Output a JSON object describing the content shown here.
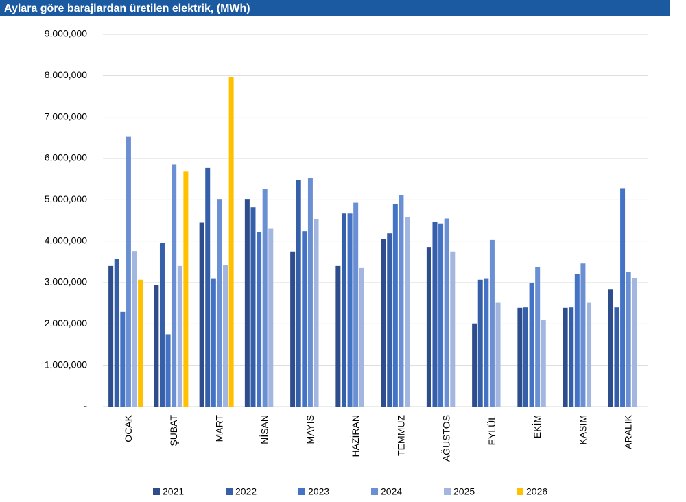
{
  "chart_data": {
    "type": "bar",
    "title": "Aylara göre barajlardan üretilen elektrik, (MWh)",
    "categories": [
      "OCAK",
      "ŞUBAT",
      "MART",
      "NİSAN",
      "MAYIS",
      "HAZİRAN",
      "TEMMUZ",
      "AĞUSTOS",
      "EYLÜL",
      "EKİM",
      "KASIM",
      "ARALIK"
    ],
    "series": [
      {
        "name": "2021",
        "color": "#2e4d8c",
        "values": [
          3400000,
          2940000,
          4450000,
          5020000,
          3750000,
          3400000,
          4050000,
          3860000,
          2010000,
          2390000,
          2390000,
          2830000
        ]
      },
      {
        "name": "2022",
        "color": "#355fa8",
        "values": [
          3570000,
          3950000,
          5770000,
          4820000,
          5480000,
          4670000,
          4190000,
          4470000,
          3070000,
          2400000,
          2400000,
          2400000
        ]
      },
      {
        "name": "2023",
        "color": "#4472c4",
        "values": [
          2290000,
          1750000,
          3090000,
          4210000,
          4240000,
          4670000,
          4890000,
          4430000,
          3090000,
          3000000,
          3200000,
          5280000
        ]
      },
      {
        "name": "2024",
        "color": "#6b8fd3",
        "values": [
          6520000,
          5860000,
          5020000,
          5260000,
          5520000,
          4930000,
          5110000,
          4550000,
          4030000,
          3380000,
          3460000,
          3260000
        ]
      },
      {
        "name": "2025",
        "color": "#a3b6e0",
        "values": [
          3760000,
          3400000,
          3420000,
          4300000,
          4530000,
          3350000,
          4580000,
          3750000,
          2510000,
          2100000,
          2510000,
          3110000
        ]
      },
      {
        "name": "2026",
        "color": "#ffc000",
        "values": [
          3070000,
          5680000,
          7970000,
          null,
          null,
          null,
          null,
          null,
          null,
          null,
          null,
          null
        ]
      }
    ],
    "ylim": [
      0,
      9000000
    ],
    "yticks": [
      {
        "value": 0,
        "label": "-"
      },
      {
        "value": 1000000,
        "label": "1,000,000"
      },
      {
        "value": 2000000,
        "label": "2,000,000"
      },
      {
        "value": 3000000,
        "label": "3,000,000"
      },
      {
        "value": 4000000,
        "label": "4,000,000"
      },
      {
        "value": 5000000,
        "label": "5,000,000"
      },
      {
        "value": 6000000,
        "label": "6,000,000"
      },
      {
        "value": 7000000,
        "label": "7,000,000"
      },
      {
        "value": 8000000,
        "label": "8,000,000"
      },
      {
        "value": 9000000,
        "label": "9,000,000"
      }
    ],
    "grid": true,
    "legend": "bottom"
  }
}
